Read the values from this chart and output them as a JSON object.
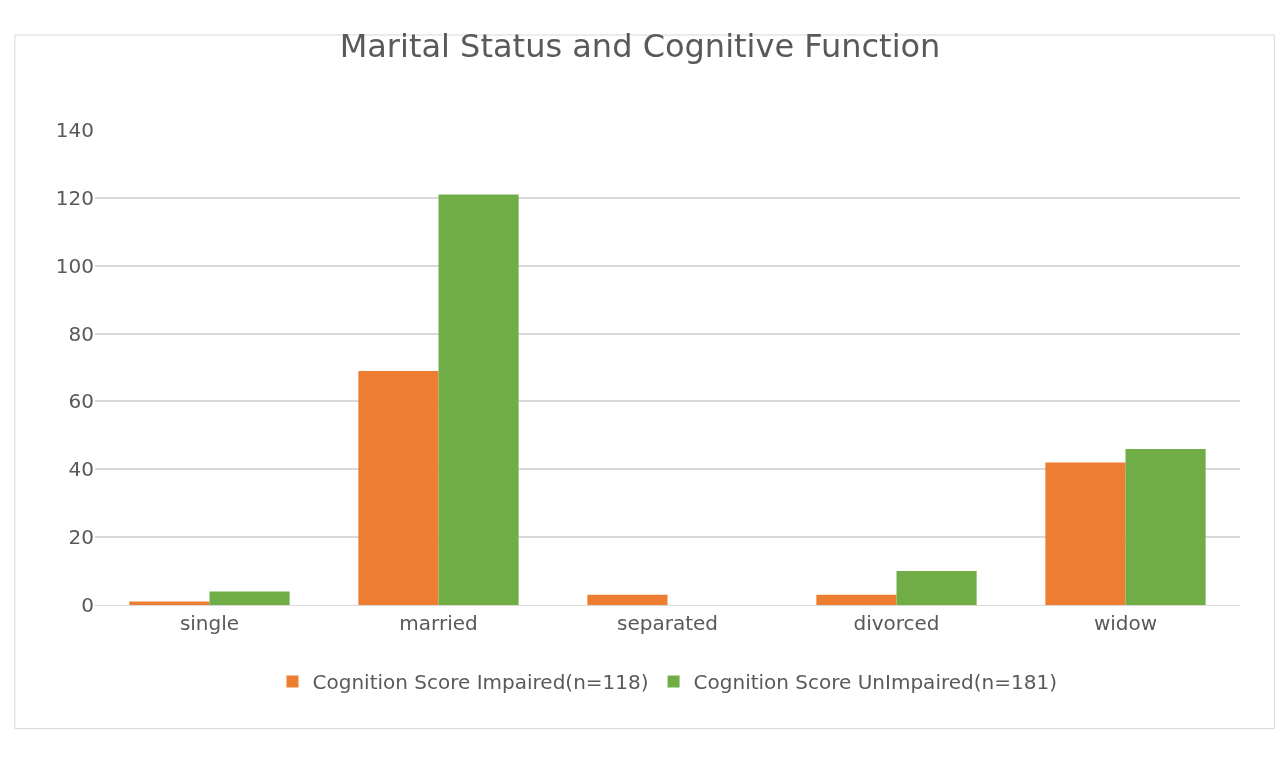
{
  "chart_data": {
    "type": "bar",
    "title": "Marital Status and Cognitive Function",
    "categories": [
      "single",
      "married",
      "separated",
      "divorced",
      "widow"
    ],
    "series": [
      {
        "name": "Cognition Score Impaired(n=118)",
        "color": "#ed7d31",
        "values": [
          1,
          69,
          3,
          3,
          42
        ]
      },
      {
        "name": "Cognition Score UnImpaired(n=181)",
        "color": "#70ad47",
        "values": [
          4,
          121,
          0,
          10,
          46
        ]
      }
    ],
    "ylim": [
      0,
      140
    ],
    "yticks": [
      0,
      20,
      40,
      60,
      80,
      100,
      120,
      140
    ],
    "grid": "y",
    "legend": "bottom"
  }
}
